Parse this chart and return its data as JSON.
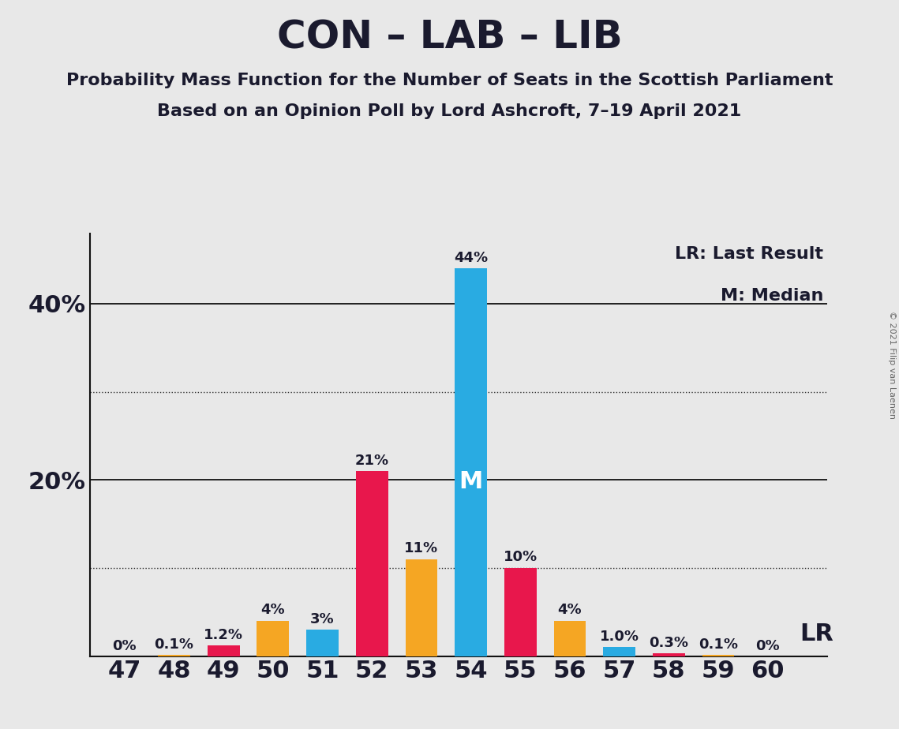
{
  "title": "CON – LAB – LIB",
  "subtitle1": "Probability Mass Function for the Number of Seats in the Scottish Parliament",
  "subtitle2": "Based on an Opinion Poll by Lord Ashcroft, 7–19 April 2021",
  "copyright": "© 2021 Filip van Laenen",
  "seats": [
    47,
    48,
    49,
    50,
    51,
    52,
    53,
    54,
    55,
    56,
    57,
    58,
    59,
    60
  ],
  "con_values": [
    0.0,
    0.0,
    1.2,
    0.0,
    0.0,
    21.0,
    0.0,
    0.0,
    10.0,
    0.0,
    0.0,
    0.3,
    0.0,
    0.0
  ],
  "lab_values": [
    0.0,
    0.1,
    0.0,
    4.0,
    0.0,
    0.0,
    11.0,
    0.0,
    0.0,
    4.0,
    0.0,
    0.0,
    0.1,
    0.0
  ],
  "lib_values": [
    0.0,
    0.0,
    0.0,
    0.0,
    3.0,
    0.0,
    0.0,
    44.0,
    0.0,
    0.0,
    1.0,
    0.0,
    0.0,
    0.0
  ],
  "bar_labels": [
    "0%",
    "0.1%",
    "1.2%",
    "4%",
    "3%",
    "21%",
    "11%",
    "44%",
    "10%",
    "4%",
    "1.0%",
    "0.3%",
    "0.1%",
    "0%"
  ],
  "con_color": "#E8174C",
  "lab_color": "#F5A623",
  "lib_color": "#29ABE2",
  "background_color": "#E8E8E8",
  "text_color": "#1a1a2e",
  "ylim_max": 48,
  "median_seat": 54,
  "lr_seat": 60,
  "legend_lr_text": "LR: Last Result",
  "legend_m_text": "M: Median",
  "lr_text": "LR",
  "title_fontsize": 36,
  "subtitle_fontsize": 16,
  "axis_tick_fontsize": 22,
  "bar_label_fontsize": 13,
  "median_fontsize": 22,
  "lr_fontsize": 22,
  "legend_fontsize": 16,
  "copyright_fontsize": 8,
  "bar_width": 0.65
}
